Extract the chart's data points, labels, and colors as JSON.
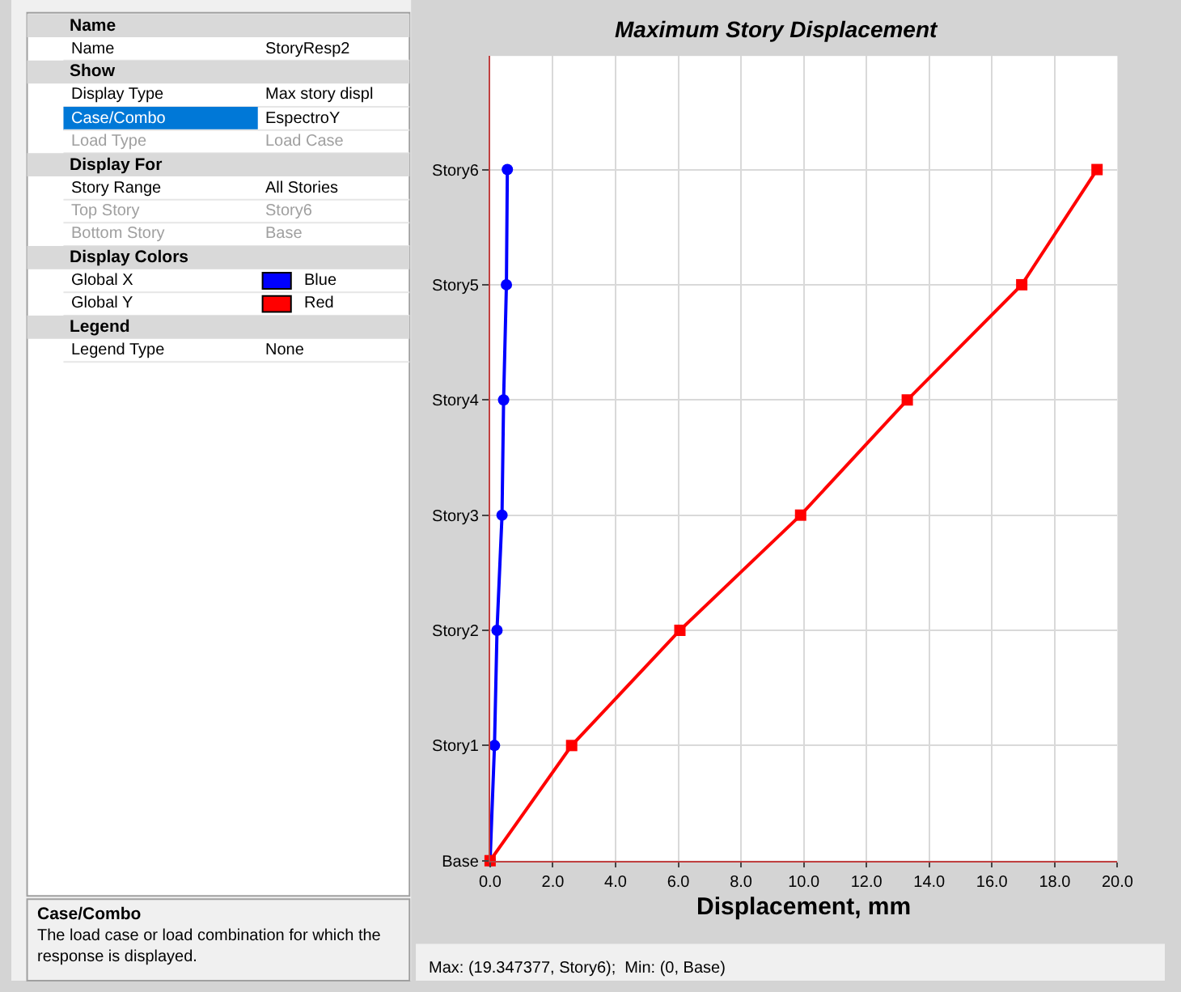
{
  "chart_data": [
    {
      "type": "other",
      "annotations": [
        "Name",
        "Name",
        "StoryResp2",
        "Show",
        "Display Type",
        "Max story displ",
        "Case/Combo",
        "EspectroY",
        "Load Type",
        "Load Case",
        "Display For",
        "Story Range",
        "All Stories",
        "Top Story",
        "Story6",
        "Bottom Story",
        "Base",
        "Display Colors",
        "Global X",
        "Blue",
        "Global Y",
        "Red",
        "Legend",
        "Legend Type",
        "None",
        "Case/Combo",
        "The load case or load combination for which the response is displayed."
      ]
    },
    {
      "type": "line",
      "orientation": "horizontal",
      "title": "Maximum Story Displacement",
      "xlabel": "Displacement, mm",
      "categories": [
        "Story6",
        "Story5",
        "Story4",
        "Story3",
        "Story2",
        "Story1",
        "Base"
      ],
      "series": [
        {
          "color": "#0000ff",
          "marker": "circle",
          "values": [
            0.55,
            0.52,
            0.43,
            0.38,
            0.22,
            0.14,
            0
          ]
        },
        {
          "color": "#ff0000",
          "marker": "square",
          "values": [
            19.35,
            16.95,
            13.3,
            9.9,
            6.05,
            2.6,
            0
          ]
        }
      ],
      "xlim": [
        0,
        20
      ],
      "xticks": [
        {
          "value": 0,
          "label": "0.0"
        },
        {
          "value": 2,
          "label": "2.0"
        },
        {
          "value": 4,
          "label": "4.0"
        },
        {
          "value": 6,
          "label": "6.0"
        },
        {
          "value": 8,
          "label": "8.0"
        },
        {
          "value": 10,
          "label": "10.0"
        },
        {
          "value": 12,
          "label": "12.0"
        },
        {
          "value": 14,
          "label": "14.0"
        },
        {
          "value": 16,
          "label": "16.0"
        },
        {
          "value": 18,
          "label": "18.0"
        },
        {
          "value": 20,
          "label": "20.0"
        }
      ],
      "grid": true,
      "annotations": [
        "Max: (19.347377, Story6);  Min: (0, Base)"
      ]
    }
  ]
}
